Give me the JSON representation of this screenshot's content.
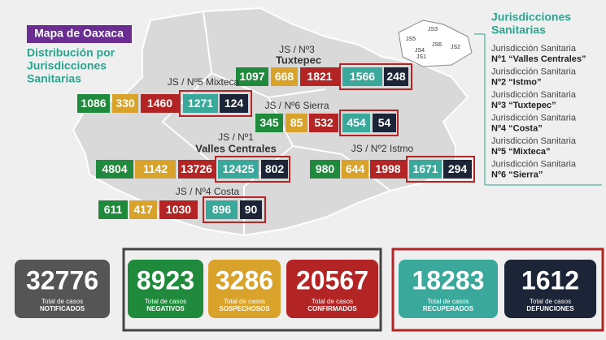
{
  "header": {
    "badge": "Mapa de Oaxaca",
    "subtitle": [
      "Distribución por",
      "Jurisdicciones",
      "Sanitarias"
    ]
  },
  "jurisdictions": [
    {
      "label": [
        "JS / Nº3",
        "Tuxtepec"
      ],
      "values": [
        1097,
        668,
        1821,
        1566,
        248
      ]
    },
    {
      "label": [
        "JS / Nº5 Mixteca"
      ],
      "values": [
        1086,
        330,
        1460,
        1271,
        124
      ]
    },
    {
      "label": [
        "JS / Nº6 Sierra"
      ],
      "values": [
        345,
        85,
        532,
        454,
        54
      ]
    },
    {
      "label": [
        "JS / Nº1",
        "Valles Centrales"
      ],
      "values": [
        4804,
        1142,
        13726,
        12425,
        802
      ]
    },
    {
      "label": [
        "JS / Nº2 Istmo"
      ],
      "values": [
        980,
        644,
        1998,
        1671,
        294
      ]
    },
    {
      "label": [
        "JS / Nº4 Costa"
      ],
      "values": [
        611,
        417,
        1030,
        896,
        90
      ]
    }
  ],
  "legend": {
    "title": [
      "Jurisdicciones",
      "Sanitarias"
    ],
    "map_labels": [
      "JS1",
      "JS2",
      "JS3",
      "JS4",
      "JS5",
      "JS6"
    ],
    "items": [
      {
        "line1": "Jurisdicción Sanitaria",
        "line2": "Nº1 “Valles Centrales”"
      },
      {
        "line1": "Jurisdicción Sanitaria",
        "line2": "Nº2 “Istmo”"
      },
      {
        "line1": "Jurisdicción Sanitaria",
        "line2": "Nº3 “Tuxtepec”"
      },
      {
        "line1": "Jurisdicción Sanitaria",
        "line2": "Nº4 “Costa”"
      },
      {
        "line1": "Jurisdicción Sanitaria",
        "line2": "Nº5 “Mixteca”"
      },
      {
        "line1": "Jurisdicción Sanitaria",
        "line2": "Nº6 “Sierra”"
      }
    ]
  },
  "totals": [
    {
      "value": 32776,
      "caption": "Total de casos",
      "label": "NOTIFICADOS"
    },
    {
      "value": 8923,
      "caption": "Total de casos",
      "label": "NEGATIVOS"
    },
    {
      "value": 3286,
      "caption": "Total de casos",
      "label": "SOSPECHOSOS"
    },
    {
      "value": 20567,
      "caption": "Total de casos",
      "label": "CONFIRMADOS"
    },
    {
      "value": 18283,
      "caption": "Total de casos",
      "label": "RECUPERADOS"
    },
    {
      "value": 1612,
      "caption": "Total de casos",
      "label": "DEFUNCIONES"
    }
  ]
}
